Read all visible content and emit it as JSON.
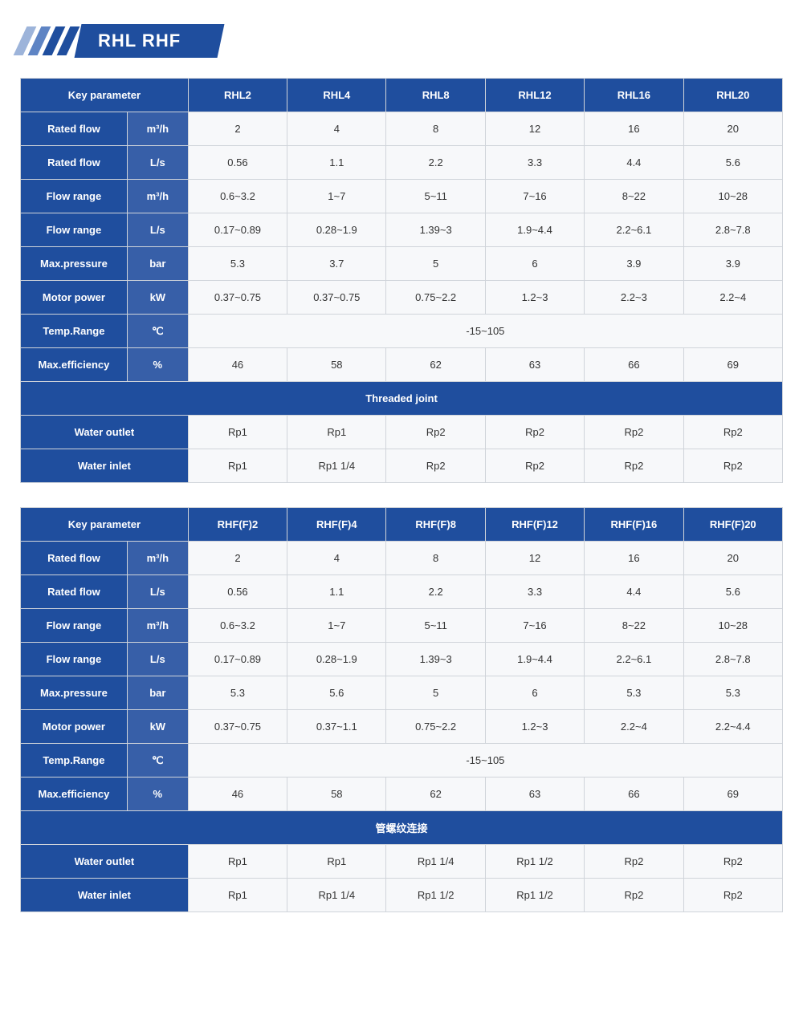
{
  "colors": {
    "brand": "#1f4e9e",
    "brandMuted": "#375fa8",
    "stripeLight": "#9db4da",
    "stripeMid": "#5e84c4",
    "border": "#d0d4da",
    "dataBg": "#f7f8fa"
  },
  "title": "RHL  RHF",
  "tables": [
    {
      "keyParameterLabel": "Key parameter",
      "models": [
        "RHL2",
        "RHL4",
        "RHL8",
        "RHL12",
        "RHL16",
        "RHL20"
      ],
      "rows": [
        {
          "label": "Rated flow",
          "unit": "m³/h",
          "values": [
            "2",
            "4",
            "8",
            "12",
            "16",
            "20"
          ]
        },
        {
          "label": "Rated flow",
          "unit": "L/s",
          "values": [
            "0.56",
            "1.1",
            "2.2",
            "3.3",
            "4.4",
            "5.6"
          ]
        },
        {
          "label": "Flow range",
          "unit": "m³/h",
          "values": [
            "0.6~3.2",
            "1~7",
            "5~11",
            "7~16",
            "8~22",
            "10~28"
          ]
        },
        {
          "label": "Flow range",
          "unit": "L/s",
          "values": [
            "0.17~0.89",
            "0.28~1.9",
            "1.39~3",
            "1.9~4.4",
            "2.2~6.1",
            "2.8~7.8"
          ]
        },
        {
          "label": "Max.pressure",
          "unit": "bar",
          "values": [
            "5.3",
            "3.7",
            "5",
            "6",
            "3.9",
            "3.9"
          ]
        },
        {
          "label": "Motor power",
          "unit": "kW",
          "values": [
            "0.37~0.75",
            "0.37~0.75",
            "0.75~2.2",
            "1.2~3",
            "2.2~3",
            "2.2~4"
          ]
        },
        {
          "label": "Temp.Range",
          "unit": "℃",
          "span": "-15~105"
        },
        {
          "label": "Max.efficiency",
          "unit": "%",
          "values": [
            "46",
            "58",
            "62",
            "63",
            "66",
            "69"
          ]
        }
      ],
      "jointHeader": "Threaded joint",
      "jointRows": [
        {
          "label": "Water outlet",
          "values": [
            "Rp1",
            "Rp1",
            "Rp2",
            "Rp2",
            "Rp2",
            "Rp2"
          ]
        },
        {
          "label": "Water inlet",
          "values": [
            "Rp1",
            "Rp1 1/4",
            "Rp2",
            "Rp2",
            "Rp2",
            "Rp2"
          ]
        }
      ]
    },
    {
      "keyParameterLabel": "Key parameter",
      "models": [
        "RHF(F)2",
        "RHF(F)4",
        "RHF(F)8",
        "RHF(F)12",
        "RHF(F)16",
        "RHF(F)20"
      ],
      "rows": [
        {
          "label": "Rated flow",
          "unit": "m³/h",
          "values": [
            "2",
            "4",
            "8",
            "12",
            "16",
            "20"
          ]
        },
        {
          "label": "Rated flow",
          "unit": "L/s",
          "values": [
            "0.56",
            "1.1",
            "2.2",
            "3.3",
            "4.4",
            "5.6"
          ]
        },
        {
          "label": "Flow range",
          "unit": "m³/h",
          "values": [
            "0.6~3.2",
            "1~7",
            "5~11",
            "7~16",
            "8~22",
            "10~28"
          ]
        },
        {
          "label": "Flow range",
          "unit": "L/s",
          "values": [
            "0.17~0.89",
            "0.28~1.9",
            "1.39~3",
            "1.9~4.4",
            "2.2~6.1",
            "2.8~7.8"
          ]
        },
        {
          "label": "Max.pressure",
          "unit": "bar",
          "values": [
            "5.3",
            "5.6",
            "5",
            "6",
            "5.3",
            "5.3"
          ]
        },
        {
          "label": "Motor power",
          "unit": "kW",
          "values": [
            "0.37~0.75",
            "0.37~1.1",
            "0.75~2.2",
            "1.2~3",
            "2.2~4",
            "2.2~4.4"
          ]
        },
        {
          "label": "Temp.Range",
          "unit": "℃",
          "span": "-15~105"
        },
        {
          "label": "Max.efficiency",
          "unit": "%",
          "values": [
            "46",
            "58",
            "62",
            "63",
            "66",
            "69"
          ]
        }
      ],
      "jointHeader": "管螺纹连接",
      "jointRows": [
        {
          "label": "Water outlet",
          "values": [
            "Rp1",
            "Rp1",
            "Rp1 1/4",
            "Rp1 1/2",
            "Rp2",
            "Rp2"
          ]
        },
        {
          "label": "Water inlet",
          "values": [
            "Rp1",
            "Rp1 1/4",
            "Rp1 1/2",
            "Rp1 1/2",
            "Rp2",
            "Rp2"
          ]
        }
      ]
    }
  ]
}
